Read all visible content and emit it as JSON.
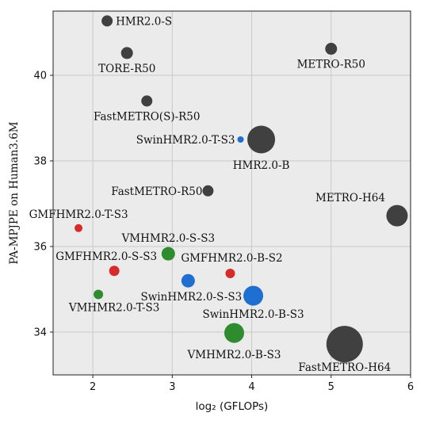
{
  "chart_data": {
    "type": "scatter",
    "xlabel": "log₂ (GFLOPs)",
    "ylabel": "PA-MPJPE on Human3.6M",
    "xlim": [
      1.5,
      6.0
    ],
    "ylim": [
      33.0,
      41.5
    ],
    "xticks": [
      2,
      3,
      4,
      5,
      6
    ],
    "yticks": [
      34,
      36,
      38,
      40
    ],
    "grid": true,
    "colors": {
      "gray": "#404040",
      "blue": "#1f6fd1",
      "red": "#d62b2b",
      "green": "#2e8b2e"
    },
    "points": [
      {
        "label": "HMR2.0-S",
        "x": 2.18,
        "y": 41.27,
        "size": 7,
        "color": "gray"
      },
      {
        "label": "TORE-R50",
        "x": 2.43,
        "y": 40.52,
        "size": 7.5,
        "color": "gray"
      },
      {
        "label": "METRO-R50",
        "x": 5.0,
        "y": 40.62,
        "size": 7.5,
        "color": "gray"
      },
      {
        "label": "FastMETRO(S)-R50",
        "x": 2.68,
        "y": 39.4,
        "size": 7,
        "color": "gray"
      },
      {
        "label": "SwinHMR2.0-T-S3",
        "x": 3.86,
        "y": 38.5,
        "size": 4,
        "color": "blue"
      },
      {
        "label": "HMR2.0-B",
        "x": 4.12,
        "y": 38.5,
        "size": 17.5,
        "color": "gray"
      },
      {
        "label": "FastMETRO-R50",
        "x": 3.45,
        "y": 37.3,
        "size": 7,
        "color": "gray"
      },
      {
        "label": "METRO-H64",
        "x": 5.83,
        "y": 36.72,
        "size": 13.5,
        "color": "gray"
      },
      {
        "label": "GMFHMR2.0-T-S3",
        "x": 1.82,
        "y": 36.43,
        "size": 5,
        "color": "red"
      },
      {
        "label": "VMHMR2.0-S-S3",
        "x": 2.95,
        "y": 35.83,
        "size": 8.5,
        "color": "green"
      },
      {
        "label": "GMFHMR2.0-S-S3",
        "x": 2.27,
        "y": 35.43,
        "size": 6.5,
        "color": "red"
      },
      {
        "label": "GMFHMR2.0-B-S2",
        "x": 3.73,
        "y": 35.37,
        "size": 6,
        "color": "red"
      },
      {
        "label": "SwinHMR2.0-S-S3",
        "x": 3.2,
        "y": 35.2,
        "size": 8.5,
        "color": "blue"
      },
      {
        "label": "VMHMR2.0-T-S3",
        "x": 2.07,
        "y": 34.88,
        "size": 6,
        "color": "green"
      },
      {
        "label": "SwinHMR2.0-B-S3",
        "x": 4.02,
        "y": 34.85,
        "size": 12.5,
        "color": "blue"
      },
      {
        "label": "VMHMR2.0-B-S3",
        "x": 3.78,
        "y": 33.98,
        "size": 12.5,
        "color": "green"
      },
      {
        "label": "FastMETRO-H64",
        "x": 5.17,
        "y": 33.72,
        "size": 23,
        "color": "gray"
      }
    ]
  }
}
